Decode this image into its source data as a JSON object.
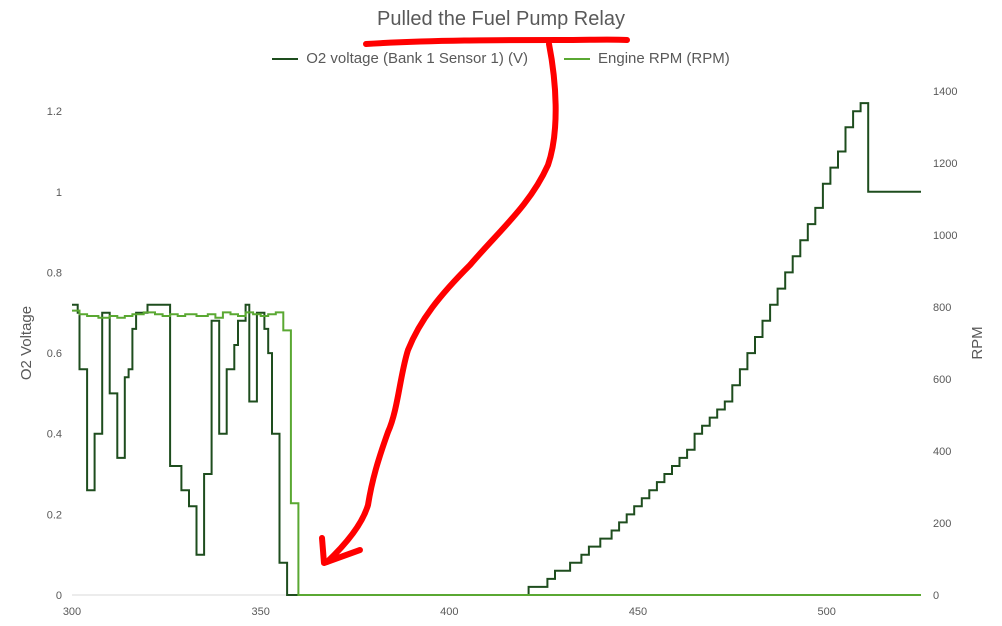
{
  "chart_data": {
    "type": "line",
    "title": "Pulled the Fuel Pump Relay",
    "ylabel": "O2 Voltage",
    "y2label": "RPM",
    "xlim": [
      300,
      525
    ],
    "ylim": [
      0,
      1.25
    ],
    "y2lim": [
      0,
      1400
    ],
    "xticks": [
      "300",
      "350",
      "400",
      "450",
      "500"
    ],
    "yticks": [
      "0",
      "0.2",
      "0.4",
      "0.6",
      "0.8",
      "1",
      "1.2"
    ],
    "y2ticks": [
      "0",
      "200",
      "400",
      "600",
      "800",
      "1000",
      "1200",
      "1400"
    ],
    "grid": false,
    "legend_position": "top",
    "series": [
      {
        "name": "O2 voltage (Bank 1  Sensor 1) (V)",
        "axis": "left",
        "color": "#1e4d1e",
        "step": true,
        "points": [
          [
            300,
            0.72
          ],
          [
            301.5,
            0.7
          ],
          [
            302,
            0.56
          ],
          [
            304,
            0.26
          ],
          [
            306,
            0.4
          ],
          [
            308,
            0.7
          ],
          [
            310,
            0.5
          ],
          [
            312,
            0.34
          ],
          [
            314,
            0.54
          ],
          [
            315,
            0.56
          ],
          [
            316,
            0.66
          ],
          [
            317,
            0.7
          ],
          [
            318,
            0.7
          ],
          [
            320,
            0.72
          ],
          [
            326,
            0.32
          ],
          [
            329,
            0.26
          ],
          [
            331,
            0.22
          ],
          [
            333,
            0.1
          ],
          [
            335,
            0.3
          ],
          [
            337,
            0.68
          ],
          [
            339,
            0.4
          ],
          [
            341,
            0.56
          ],
          [
            343,
            0.62
          ],
          [
            344,
            0.68
          ],
          [
            346,
            0.72
          ],
          [
            347,
            0.48
          ],
          [
            349,
            0.7
          ],
          [
            351,
            0.66
          ],
          [
            352,
            0.6
          ],
          [
            353,
            0.4
          ],
          [
            355,
            0.08
          ],
          [
            357,
            0
          ],
          [
            421,
            0.02
          ],
          [
            426,
            0.04
          ],
          [
            428,
            0.06
          ],
          [
            432,
            0.08
          ],
          [
            435,
            0.1
          ],
          [
            437,
            0.12
          ],
          [
            440,
            0.14
          ],
          [
            443,
            0.16
          ],
          [
            445,
            0.18
          ],
          [
            447,
            0.2
          ],
          [
            449,
            0.22
          ],
          [
            451,
            0.24
          ],
          [
            453,
            0.26
          ],
          [
            455,
            0.28
          ],
          [
            457,
            0.3
          ],
          [
            459,
            0.32
          ],
          [
            461,
            0.34
          ],
          [
            463,
            0.36
          ],
          [
            465,
            0.4
          ],
          [
            467,
            0.42
          ],
          [
            469,
            0.44
          ],
          [
            471,
            0.46
          ],
          [
            473,
            0.48
          ],
          [
            475,
            0.52
          ],
          [
            477,
            0.56
          ],
          [
            479,
            0.6
          ],
          [
            481,
            0.64
          ],
          [
            483,
            0.68
          ],
          [
            485,
            0.72
          ],
          [
            487,
            0.76
          ],
          [
            489,
            0.8
          ],
          [
            491,
            0.84
          ],
          [
            493,
            0.88
          ],
          [
            495,
            0.92
          ],
          [
            497,
            0.96
          ],
          [
            499,
            1.02
          ],
          [
            501,
            1.06
          ],
          [
            503,
            1.1
          ],
          [
            505,
            1.16
          ],
          [
            507,
            1.2
          ],
          [
            509,
            1.22
          ],
          [
            511,
            1.0
          ],
          [
            525,
            1.0
          ]
        ]
      },
      {
        "name": "Engine RPM (RPM)",
        "axis": "right",
        "color": "#5aa832",
        "step": true,
        "points": [
          [
            300,
            790
          ],
          [
            302,
            780
          ],
          [
            304,
            775
          ],
          [
            307,
            770
          ],
          [
            310,
            775
          ],
          [
            312,
            770
          ],
          [
            314,
            775
          ],
          [
            316,
            780
          ],
          [
            319,
            785
          ],
          [
            322,
            780
          ],
          [
            324,
            775
          ],
          [
            326,
            780
          ],
          [
            328,
            775
          ],
          [
            330,
            780
          ],
          [
            333,
            775
          ],
          [
            336,
            780
          ],
          [
            338,
            770
          ],
          [
            340,
            785
          ],
          [
            342,
            780
          ],
          [
            344,
            775
          ],
          [
            346,
            785
          ],
          [
            348,
            780
          ],
          [
            350,
            775
          ],
          [
            352,
            780
          ],
          [
            354,
            785
          ],
          [
            356,
            735
          ],
          [
            358,
            255
          ],
          [
            360,
            0
          ],
          [
            525,
            0
          ]
        ]
      }
    ],
    "annotations": [
      {
        "type": "underline",
        "target": "title",
        "color": "#ff0000"
      },
      {
        "type": "arrow",
        "color": "#ff0000",
        "points_to_x": 365,
        "points_to_y": 0
      }
    ]
  }
}
